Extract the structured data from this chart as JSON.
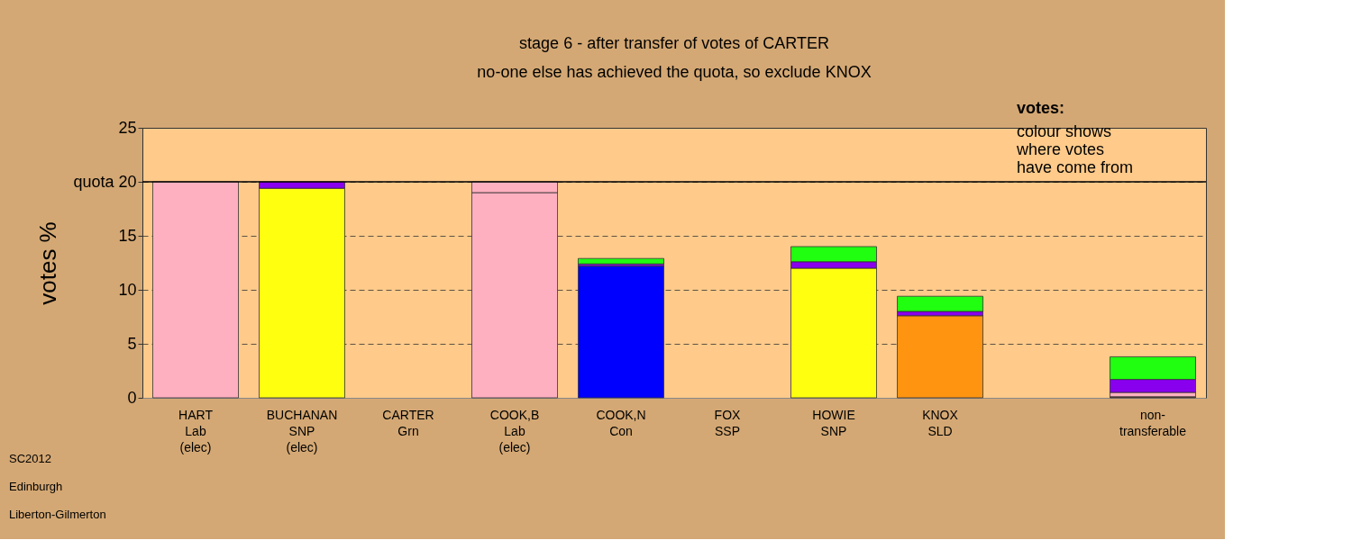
{
  "chart_data": {
    "type": "bar",
    "stacked": true,
    "title": "stage 6 - after transfer of votes of CARTER",
    "subtitle": "no-one else has achieved the quota, so exclude KNOX",
    "ylabel": "votes %",
    "categories": [
      "HART\nLab\n(elec)",
      "BUCHANAN\nSNP\n(elec)",
      "CARTER\nGrn",
      "COOK,B\nLab\n(elec)",
      "COOK,N\nCon",
      "FOX\nSSP",
      "HOWIE\nSNP",
      "KNOX\nSLD",
      null,
      "non-\ntransferable"
    ],
    "series": [
      {
        "color": "#ffb0c0",
        "values": [
          20,
          null,
          null,
          19,
          null,
          null,
          null,
          null,
          null,
          null
        ]
      },
      {
        "color": "#ffff10",
        "values": [
          null,
          19.4,
          null,
          null,
          null,
          null,
          12.0,
          null,
          null,
          null
        ]
      },
      {
        "color": "#0000ff",
        "values": [
          null,
          null,
          null,
          null,
          12.2,
          null,
          null,
          null,
          null,
          null
        ]
      },
      {
        "color": "#ff9410",
        "values": [
          null,
          null,
          null,
          null,
          null,
          null,
          null,
          7.6,
          null,
          null
        ]
      },
      {
        "color": "#7a3b2e",
        "values": [
          null,
          null,
          null,
          null,
          null,
          null,
          null,
          null,
          null,
          0.1
        ]
      },
      {
        "color": "#ffb0c0",
        "values": [
          null,
          null,
          null,
          1,
          null,
          null,
          null,
          null,
          null,
          0.4
        ]
      },
      {
        "color": "#8800ee",
        "values": [
          null,
          0.6,
          null,
          null,
          0.2,
          null,
          0.6,
          0.4,
          null,
          1.2
        ]
      },
      {
        "color": "#20ff10",
        "values": [
          null,
          null,
          null,
          null,
          0.5,
          null,
          1.4,
          1.4,
          null,
          2.1
        ]
      }
    ],
    "ylim": [
      0,
      25
    ],
    "yticks": [
      0,
      5,
      10,
      15,
      {
        "value": 20,
        "label": "quota 20"
      },
      25
    ],
    "grid": "y",
    "ref_lines": [
      {
        "axis": "y",
        "value": 20
      }
    ],
    "annotations": [
      "votes:",
      "colour shows\nwhere votes\nhave come from",
      "SC2012",
      "Edinburgh",
      "Liberton-Gilmerton"
    ]
  }
}
